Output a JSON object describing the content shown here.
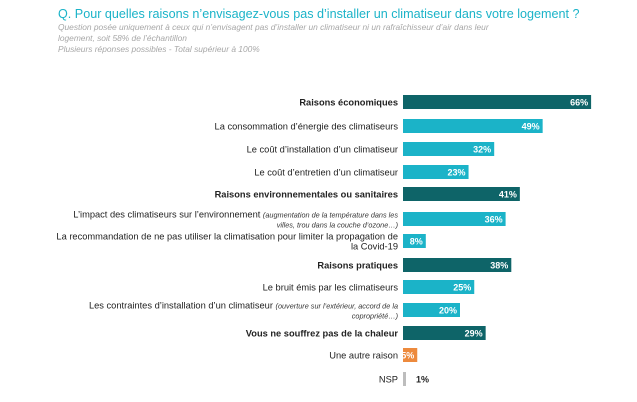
{
  "header": {
    "question": "Q. Pour quelles raisons n’envisagez-vous pas d’installer un climatiseur dans votre logement ?",
    "note_line1": "Question posée uniquement à ceux qui n’envisagent pas d’installer un climatiseur ni un rafraîchisseur d’air dans leur",
    "note_line2": "logement, soit 58% de l’échantillon",
    "note_line3": "Plusieurs réponses possibles - Total supérieur à 100%"
  },
  "chart_data": {
    "type": "bar",
    "orientation": "horizontal",
    "xlim": [
      0,
      100
    ],
    "grid": false,
    "items": [
      {
        "label": "Raisons économiques",
        "value": 66,
        "value_label": "66%",
        "kind": "category",
        "color": "#0e6468"
      },
      {
        "label": "La consommation d’énergie des climatiseurs",
        "value": 49,
        "value_label": "49%",
        "kind": "item",
        "color": "#1bb3c8"
      },
      {
        "label": "Le coût d’installation d’un climatiseur",
        "value": 32,
        "value_label": "32%",
        "kind": "item",
        "color": "#1bb3c8"
      },
      {
        "label": "Le coût d’entretien d’un climatiseur",
        "value": 23,
        "value_label": "23%",
        "kind": "item",
        "color": "#1bb3c8"
      },
      {
        "label": "Raisons environnementales ou sanitaires",
        "value": 41,
        "value_label": "41%",
        "kind": "category",
        "color": "#0e6468"
      },
      {
        "label": "L’impact des climatiseurs sur l’environnement",
        "note_line1": "(augmentation de la température dans les",
        "note_line2": "villes, trou dans la couche d’ozone…)",
        "value": 36,
        "value_label": "36%",
        "kind": "item",
        "color": "#1bb3c8"
      },
      {
        "label": "La recommandation de ne pas utiliser la climatisation pour limiter la propagation de",
        "label_line2": "la Covid-19",
        "value": 8,
        "value_label": "8%",
        "kind": "item",
        "color": "#1bb3c8"
      },
      {
        "label": "Raisons pratiques",
        "value": 38,
        "value_label": "38%",
        "kind": "category",
        "color": "#0e6468"
      },
      {
        "label": "Le bruit émis par les climatiseurs",
        "value": 25,
        "value_label": "25%",
        "kind": "item",
        "color": "#1bb3c8"
      },
      {
        "label": "Les contraintes d’installation d’un climatiseur",
        "note_line1": "(ouverture sur l’extérieur, accord de la",
        "note_line2": "copropriété…)",
        "value": 20,
        "value_label": "20%",
        "kind": "item",
        "color": "#1bb3c8"
      },
      {
        "label": "Vous ne souffrez pas de la chaleur",
        "value": 29,
        "value_label": "29%",
        "kind": "category",
        "color": "#0e6468"
      },
      {
        "label": "Une autre raison",
        "value": 5,
        "value_label": "5%",
        "kind": "other",
        "color": "#ed8a3d"
      },
      {
        "label": "NSP",
        "value": 1,
        "value_label": "1%",
        "kind": "other",
        "color": "#bdbdbd"
      }
    ]
  }
}
